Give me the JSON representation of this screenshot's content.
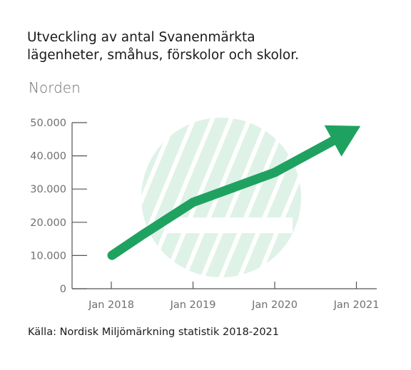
{
  "header": {
    "title_line1": "Utveckling av antal Svanenmärkta",
    "title_line2": "lägenheter, småhus, förskolor och skolor.",
    "subtitle": "Norden"
  },
  "footer": {
    "source": "Källa: Nordisk Miljömärkning statistik 2018-2021"
  },
  "colors": {
    "series": "#1fa260",
    "watermark": "#dff2e8",
    "axis": "#555555"
  },
  "chart_data": {
    "type": "line",
    "title": "Utveckling av antal Svanenmärkta lägenheter, småhus, förskolor och skolor.",
    "subtitle": "Norden",
    "xlabel": "",
    "ylabel": "",
    "categories": [
      "Jan 2018",
      "Jan 2019",
      "Jan 2020",
      "Jan 2021"
    ],
    "y_ticks": [
      "0",
      "10.000",
      "20.000",
      "30.000",
      "40.000",
      "50.000"
    ],
    "ylim": [
      0,
      50000
    ],
    "x": [
      0,
      0.2,
      1,
      2,
      3.05
    ],
    "values": [
      15000,
      18000,
      26000,
      35000,
      49000
    ],
    "arrow_end": true,
    "grid": false,
    "background_mark": "swan-logo-watermark"
  }
}
